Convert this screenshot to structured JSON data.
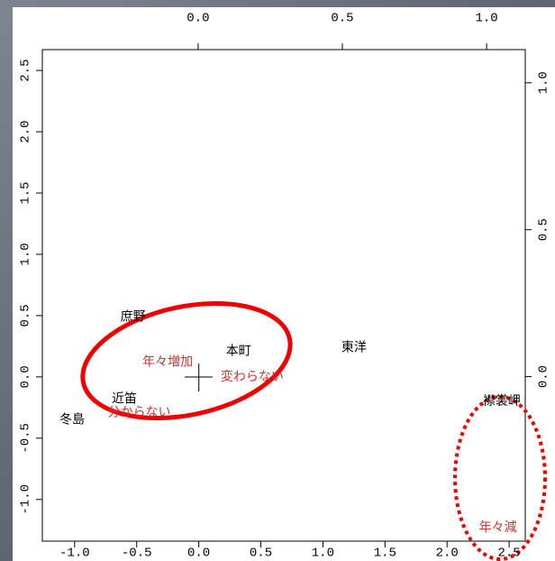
{
  "chart_data": {
    "type": "scatter",
    "series": [
      {
        "color": "#000000",
        "labels": [
          "庶野",
          "本町",
          "東洋",
          "近笛",
          "冬島",
          "襟裳岬"
        ],
        "x": [
          -0.53,
          0.32,
          1.25,
          -0.6,
          -1.02,
          2.44
        ],
        "y": [
          0.49,
          0.21,
          0.24,
          -0.18,
          -0.35,
          -0.2
        ]
      },
      {
        "color": "#cc3333",
        "labels": [
          "年々増加",
          "変わらない",
          "分からない",
          "年々減"
        ],
        "x": [
          -0.25,
          0.43,
          -0.48,
          2.41
        ],
        "y": [
          0.12,
          0.0,
          -0.29,
          -1.23
        ]
      }
    ],
    "xlim": [
      -1.26,
      2.63
    ],
    "xticks": [
      {
        "value": -1,
        "label": "-1.0"
      },
      -0.5,
      {
        "value": 0,
        "label": "0.0"
      },
      0.5,
      {
        "value": 1,
        "label": "1.0"
      },
      1.5,
      {
        "value": 2,
        "label": "2.0"
      },
      2.5
    ],
    "ylim": [
      -1.34,
      2.67
    ],
    "yticks": [
      {
        "value": -1,
        "label": "-1.0"
      },
      -0.5,
      {
        "value": 0,
        "label": "0.0"
      },
      0.5,
      {
        "value": 1,
        "label": "1.0"
      },
      1.5,
      {
        "value": 2,
        "label": "2.0"
      },
      2.5
    ],
    "x2lim": [
      -0.54,
      1.134
    ],
    "x2ticks": [
      {
        "value": 0,
        "label": "0.0"
      },
      0.5,
      {
        "value": 1,
        "label": "1.0"
      }
    ],
    "y2lim": [
      -0.56,
      1.113
    ],
    "y2ticks": [
      {
        "value": 0,
        "label": "0.0"
      },
      0.5,
      {
        "value": 1,
        "label": "1.0"
      }
    ]
  }
}
